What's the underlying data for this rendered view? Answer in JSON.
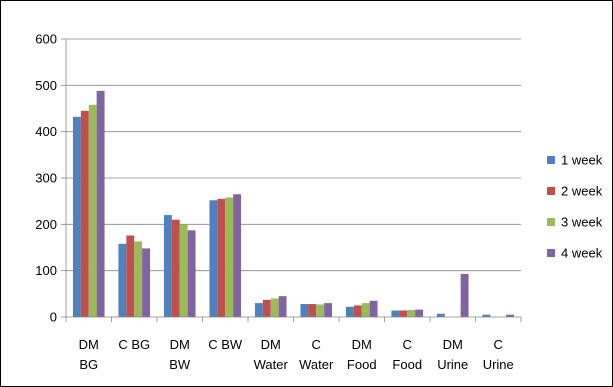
{
  "chart_data": {
    "type": "bar",
    "title": "",
    "xlabel": "",
    "ylabel": "",
    "ylim": [
      0,
      600
    ],
    "yticks": [
      0,
      100,
      200,
      300,
      400,
      500,
      600
    ],
    "grid": "horizontal",
    "legend_position": "right",
    "categories": [
      [
        "DM",
        "BG"
      ],
      [
        "C BG"
      ],
      [
        "DM",
        "BW"
      ],
      [
        "C BW"
      ],
      [
        "DM",
        "Water"
      ],
      [
        "C",
        "Water"
      ],
      [
        "DM",
        "Food"
      ],
      [
        "C",
        "Food"
      ],
      [
        "DM",
        "Urine"
      ],
      [
        "C",
        "Urine"
      ]
    ],
    "series": [
      {
        "name": "1 week",
        "color": "#4F81BD",
        "values": [
          432,
          158,
          220,
          252,
          30,
          28,
          22,
          14,
          7,
          5
        ]
      },
      {
        "name": "2 week",
        "color": "#C0504D",
        "values": [
          445,
          176,
          210,
          255,
          37,
          28,
          25,
          14,
          0,
          0
        ]
      },
      {
        "name": "3 week",
        "color": "#9BBB59",
        "values": [
          458,
          163,
          200,
          258,
          40,
          27,
          30,
          15,
          0,
          0
        ]
      },
      {
        "name": "4 week",
        "color": "#8064A2",
        "values": [
          488,
          148,
          187,
          265,
          45,
          30,
          35,
          16,
          93,
          5
        ]
      }
    ]
  }
}
